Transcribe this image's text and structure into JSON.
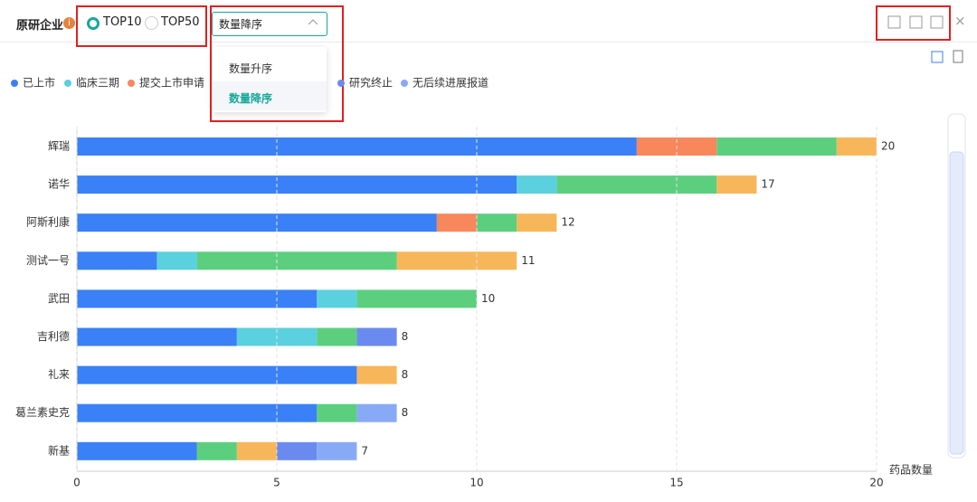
{
  "header": {
    "title": "原研企业",
    "options": [
      "TOP10",
      "TOP50"
    ],
    "sort_select": "数量降序",
    "sort_menu": [
      "数量升序",
      "数量降序"
    ]
  },
  "chart_data": {
    "type": "stacked-bar-horizontal",
    "categories": [
      "辉瑞",
      "诺华",
      "阿斯利康",
      "测试一号",
      "武田",
      "吉利德",
      "礼来",
      "葛兰素史克",
      "新基"
    ],
    "series": [
      {
        "name": "已上市",
        "color": "#3a80f6",
        "values": [
          14,
          11,
          9,
          2,
          6,
          4,
          7,
          6,
          3
        ]
      },
      {
        "name": "临床三期",
        "color": "#5bd0de",
        "values": [
          0,
          1,
          0,
          1,
          1,
          2,
          0,
          0,
          0
        ]
      },
      {
        "name": "提交上市申请",
        "color": "#f8875c",
        "values": [
          2,
          0,
          1,
          0,
          0,
          0,
          0,
          0,
          0
        ]
      },
      {
        "color": "#5ccf7f",
        "values": [
          3,
          4,
          1,
          5,
          3,
          1,
          0,
          1,
          1
        ]
      },
      {
        "color": "#f8b65a",
        "values": [
          1,
          1,
          1,
          3,
          0,
          0,
          1,
          0,
          1
        ]
      },
      {
        "name": "研究终止",
        "color": "#6a8af0",
        "values": [
          0,
          0,
          0,
          0,
          0,
          1,
          0,
          0,
          1
        ]
      },
      {
        "name": "无后续进展报道",
        "color": "#88aaf6",
        "values": [
          0,
          0,
          0,
          0,
          0,
          0,
          0,
          1,
          1
        ]
      }
    ],
    "totals": [
      20,
      17,
      12,
      11,
      10,
      8,
      8,
      8,
      7
    ],
    "x_label": "药品数量",
    "xlim": [
      0,
      20
    ],
    "xticks": [
      0,
      5,
      10,
      15,
      20
    ],
    "grid": true
  }
}
